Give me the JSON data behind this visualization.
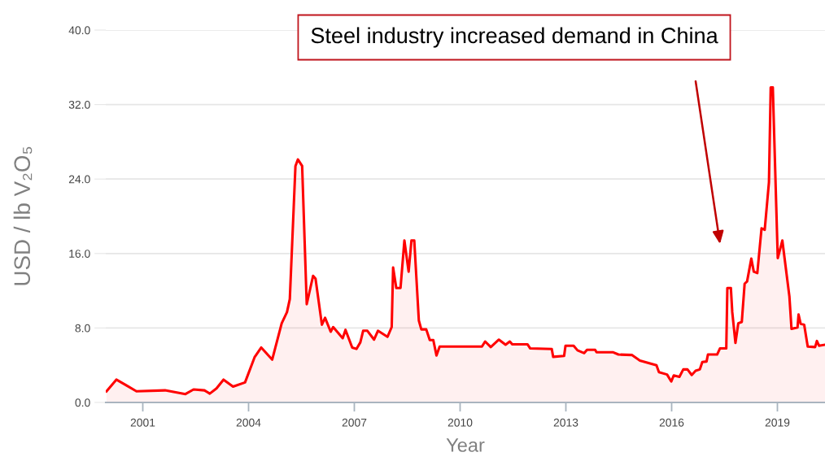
{
  "chart_data": {
    "type": "area",
    "xlabel": "Year",
    "ylabel": "USD / lb V₂O₅",
    "x": [
      1999.97,
      2000.25,
      2000.55,
      2000.82,
      2001.63,
      2002.21,
      2002.44,
      2002.75,
      2002.9,
      2003.09,
      2003.29,
      2003.56,
      2003.9,
      2004.17,
      2004.36,
      2004.67,
      2004.94,
      2005.09,
      2005.17,
      2005.33,
      2005.4,
      2005.52,
      2005.65,
      2005.83,
      2005.9,
      2006.08,
      2006.17,
      2006.33,
      2006.4,
      2006.67,
      2006.75,
      2006.94,
      2007.06,
      2007.17,
      2007.25,
      2007.37,
      2007.56,
      2007.67,
      2007.94,
      2008.06,
      2008.1,
      2008.19,
      2008.31,
      2008.42,
      2008.54,
      2008.62,
      2008.7,
      2008.83,
      2008.9,
      2009.04,
      2009.14,
      2009.24,
      2009.33,
      2009.42,
      2010.62,
      2010.71,
      2010.87,
      2011.1,
      2011.29,
      2011.41,
      2011.48,
      2011.91,
      2011.99,
      2012.6,
      2012.64,
      2012.95,
      2012.99,
      2013.22,
      2013.33,
      2013.52,
      2013.6,
      2013.83,
      2013.87,
      2014.33,
      2014.49,
      2014.87,
      2015.1,
      2015.57,
      2015.64,
      2015.87,
      2015.99,
      2016.06,
      2016.22,
      2016.33,
      2016.45,
      2016.57,
      2016.68,
      2016.8,
      2016.87,
      2016.99,
      2017.03,
      2017.29,
      2017.37,
      2017.55,
      2017.58,
      2017.68,
      2017.72,
      2017.81,
      2017.89,
      2017.99,
      2018.07,
      2018.14,
      2018.26,
      2018.33,
      2018.43,
      2018.55,
      2018.64,
      2018.76,
      2018.81,
      2018.87,
      2019.01,
      2019.14,
      2019.34,
      2019.4,
      2019.57,
      2019.6,
      2019.66,
      2019.76,
      2019.86,
      2020.07,
      2020.12,
      2020.18,
      2020.35
    ],
    "series": [
      {
        "color": "#ff0000",
        "values": [
          1.2,
          2.45,
          1.8,
          1.2,
          1.3,
          0.9,
          1.4,
          1.3,
          0.95,
          1.5,
          2.45,
          1.7,
          2.15,
          4.85,
          5.9,
          4.6,
          8.5,
          9.7,
          11.1,
          25.4,
          26.1,
          25.4,
          10.55,
          13.6,
          13.3,
          8.35,
          9.1,
          7.6,
          8.1,
          6.9,
          7.8,
          5.9,
          5.75,
          6.45,
          7.7,
          7.7,
          6.75,
          7.7,
          7.05,
          8.1,
          14.5,
          12.3,
          12.3,
          17.4,
          14.05,
          17.4,
          17.4,
          8.8,
          7.85,
          7.85,
          6.7,
          6.7,
          5.05,
          6.0,
          6.0,
          6.55,
          5.95,
          6.75,
          6.2,
          6.55,
          6.25,
          6.25,
          5.8,
          5.75,
          4.9,
          5.0,
          6.1,
          6.1,
          5.6,
          5.3,
          5.65,
          5.65,
          5.4,
          5.4,
          5.15,
          5.1,
          4.5,
          4.0,
          3.25,
          3.0,
          2.25,
          2.9,
          2.75,
          3.55,
          3.55,
          2.95,
          3.4,
          3.55,
          4.35,
          4.4,
          5.15,
          5.15,
          5.8,
          5.8,
          12.3,
          12.3,
          9.7,
          6.4,
          8.5,
          8.65,
          12.75,
          13.0,
          15.45,
          14.05,
          13.9,
          18.7,
          18.55,
          23.65,
          33.85,
          33.85,
          15.5,
          17.4,
          11.4,
          7.9,
          8.05,
          9.45,
          8.45,
          8.35,
          6.0,
          5.95,
          6.6,
          6.1,
          6.2
        ]
      }
    ],
    "xlim": [
      1999.95,
      2020.35
    ],
    "xticks": [
      2001,
      2004,
      2007,
      2010,
      2013,
      2016,
      2019
    ],
    "ylim": [
      0,
      40
    ],
    "yticks": [
      {
        "value": 0,
        "label": "0.0"
      },
      {
        "value": 8,
        "label": "8.0"
      },
      {
        "value": 16,
        "label": "16.0"
      },
      {
        "value": 24,
        "label": "24.0"
      },
      {
        "value": 32,
        "label": "32.0"
      },
      {
        "value": 40,
        "label": "40.0"
      }
    ],
    "grid": "y",
    "annotations": [
      "Steel industry increased demand in China"
    ]
  }
}
